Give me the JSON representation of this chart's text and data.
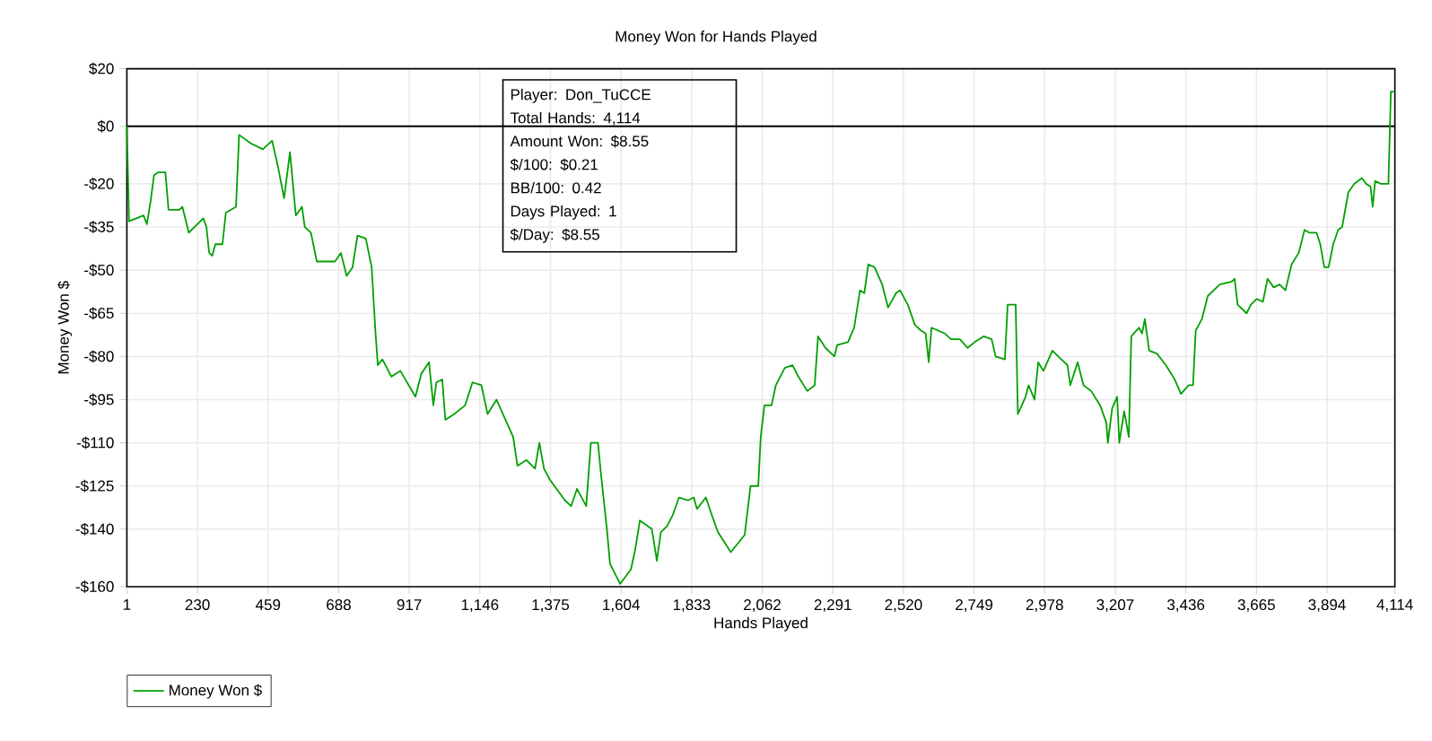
{
  "chart_data": {
    "type": "line",
    "title": "Money Won for Hands Played",
    "xlabel": "Hands Played",
    "ylabel": "Money Won $",
    "x": [
      1,
      8,
      55,
      66,
      78,
      89,
      103,
      126,
      136,
      171,
      181,
      202,
      220,
      249,
      259,
      268,
      278,
      288,
      311,
      322,
      355,
      365,
      404,
      442,
      472,
      491,
      511,
      530,
      549,
      569,
      578,
      598,
      617,
      646,
      676,
      695,
      714,
      733,
      749,
      776,
      795,
      807,
      815,
      830,
      859,
      888,
      937,
      956,
      981,
      995,
      1005,
      1024,
      1034,
      1063,
      1098,
      1122,
      1151,
      1171,
      1200,
      1229,
      1254,
      1268,
      1297,
      1325,
      1339,
      1354,
      1374,
      1422,
      1442,
      1461,
      1491,
      1506,
      1529,
      1539,
      1559,
      1568,
      1601,
      1636,
      1650,
      1665,
      1704,
      1720,
      1733,
      1753,
      1772,
      1792,
      1821,
      1840,
      1850,
      1879,
      1898,
      1918,
      1960,
      2005,
      2024,
      2049,
      2057,
      2069,
      2092,
      2106,
      2135,
      2160,
      2179,
      2208,
      2232,
      2243,
      2267,
      2296,
      2305,
      2340,
      2360,
      2379,
      2393,
      2406,
      2426,
      2451,
      2470,
      2496,
      2509,
      2534,
      2557,
      2577,
      2592,
      2602,
      2611,
      2654,
      2674,
      2703,
      2728,
      2751,
      2780,
      2806,
      2819,
      2849,
      2858,
      2884,
      2891,
      2916,
      2926,
      2945,
      2957,
      2974,
      3003,
      3032,
      3052,
      3061,
      3085,
      3104,
      3129,
      3158,
      3178,
      3183,
      3197,
      3213,
      3220,
      3236,
      3251,
      3259,
      3284,
      3294,
      3303,
      3317,
      3342,
      3371,
      3400,
      3420,
      3445,
      3459,
      3468,
      3488,
      3507,
      3546,
      3585,
      3594,
      3604,
      3633,
      3647,
      3666,
      3686,
      3701,
      3721,
      3740,
      3759,
      3779,
      3802,
      3821,
      3837,
      3860,
      3872,
      3885,
      3899,
      3914,
      3930,
      3943,
      3963,
      3982,
      4007,
      4021,
      4035,
      4042,
      4050,
      4069,
      4093,
      4101,
      4110
    ],
    "series": [
      {
        "name": "Money Won $",
        "color": "#00a000",
        "values": [
          0,
          -33,
          -31,
          -34,
          -26,
          -17,
          -16,
          -16,
          -29,
          -29,
          -28,
          -37,
          -35,
          -32,
          -35,
          -44,
          -45,
          -41,
          -41,
          -30,
          -28,
          -3,
          -6,
          -8,
          -5,
          -14,
          -25,
          -9,
          -31,
          -28,
          -35,
          -37,
          -47,
          -47,
          -47,
          -44,
          -52,
          -49,
          -38,
          -39,
          -49,
          -71,
          -83,
          -81,
          -87,
          -85,
          -94,
          -86,
          -82,
          -97,
          -89,
          -88,
          -102,
          -100,
          -97,
          -89,
          -90,
          -100,
          -95,
          -102,
          -108,
          -118,
          -116,
          -119,
          -110,
          -119,
          -123,
          -130,
          -132,
          -126,
          -132,
          -110,
          -110,
          -121,
          -141,
          -152,
          -159,
          -154,
          -147,
          -137,
          -140,
          -151,
          -141,
          -139,
          -135,
          -129,
          -130,
          -129,
          -133,
          -129,
          -135,
          -141,
          -148,
          -142,
          -125,
          -125,
          -108,
          -97,
          -97,
          -90,
          -84,
          -83,
          -87,
          -92,
          -90,
          -73,
          -77,
          -80,
          -76,
          -75,
          -70,
          -57,
          -58,
          -48,
          -49,
          -55,
          -63,
          -58,
          -57,
          -62,
          -69,
          -71,
          -72,
          -82,
          -70,
          -72,
          -74,
          -74,
          -77,
          -75,
          -73,
          -74,
          -80,
          -81,
          -62,
          -62,
          -100,
          -94,
          -90,
          -95,
          -82,
          -85,
          -78,
          -81,
          -83,
          -90,
          -82,
          -90,
          -92,
          -97,
          -103,
          -110,
          -98,
          -94,
          -110,
          -99,
          -108,
          -73,
          -70,
          -72,
          -67,
          -78,
          -79,
          -83,
          -88,
          -93,
          -90,
          -90,
          -71,
          -67,
          -59,
          -55,
          -54,
          -53,
          -62,
          -65,
          -62,
          -60,
          -61,
          -53,
          -56,
          -55,
          -57,
          -48,
          -44,
          -36,
          -37,
          -37,
          -41,
          -49,
          -49,
          -41,
          -36,
          -35,
          -23,
          -20,
          -18,
          -20,
          -21,
          -28,
          -19,
          -20,
          -20,
          12,
          12
        ]
      }
    ],
    "xlim": [
      1,
      4114
    ],
    "ylim": [
      -160,
      20
    ],
    "xticks": [
      1,
      230,
      459,
      688,
      917,
      {
        "value": 1146,
        "label": "1,146"
      },
      {
        "value": 1375,
        "label": "1,375"
      },
      {
        "value": 1604,
        "label": "1,604"
      },
      {
        "value": 1833,
        "label": "1,833"
      },
      {
        "value": 2062,
        "label": "2,062"
      },
      {
        "value": 2291,
        "label": "2,291"
      },
      {
        "value": 2520,
        "label": "2,520"
      },
      {
        "value": 2749,
        "label": "2,749"
      },
      {
        "value": 2978,
        "label": "2,978"
      },
      {
        "value": 3207,
        "label": "3,207"
      },
      {
        "value": 3436,
        "label": "3,436"
      },
      {
        "value": 3665,
        "label": "3,665"
      },
      {
        "value": 3894,
        "label": "3,894"
      },
      {
        "value": 4114,
        "label": "4,114"
      }
    ],
    "yticks": [
      {
        "value": 20,
        "label": "$20"
      },
      {
        "value": 0,
        "label": "$0"
      },
      {
        "value": -20,
        "label": "-$20"
      },
      {
        "value": -35,
        "label": "-$35"
      },
      {
        "value": -50,
        "label": "-$50"
      },
      {
        "value": -65,
        "label": "-$65"
      },
      {
        "value": -80,
        "label": "-$80"
      },
      {
        "value": -95,
        "label": "-$95"
      },
      {
        "value": -110,
        "label": "-$110"
      },
      {
        "value": -125,
        "label": "-$125"
      },
      {
        "value": -140,
        "label": "-$140"
      },
      {
        "value": -160,
        "label": "-$160"
      }
    ],
    "ref_lines": [
      {
        "axis": "y",
        "value": 0,
        "color": "#000000"
      }
    ],
    "annotations": [
      "Player: Don_TuCCE",
      "Total Hands: 4,114",
      "Amount Won: $8.55",
      "$/100: $0.21",
      "BB/100: 0.42",
      "Days Played: 1",
      "$/Day: $8.55"
    ],
    "grid": true,
    "legend": "bottom left",
    "marker": "none",
    "line_style": "solid"
  }
}
